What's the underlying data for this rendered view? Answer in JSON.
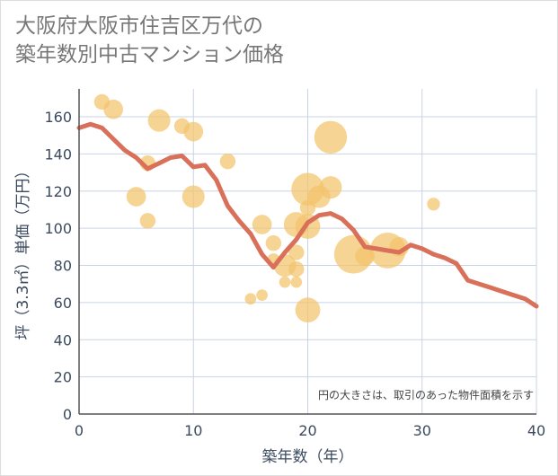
{
  "title_lines": [
    "大阪府大阪市住吉区万代の",
    "築年数別中古マンション価格"
  ],
  "chart_data": {
    "type": "scatter",
    "title": "大阪府大阪市住吉区万代の築年数別中古マンション価格",
    "xlabel": "築年数（年）",
    "ylabel": "坪（3.3㎡）単価（万円）",
    "xlim": [
      0,
      40
    ],
    "ylim": [
      0,
      175
    ],
    "xticks": [
      0,
      10,
      20,
      30,
      40
    ],
    "yticks": [
      0,
      20,
      40,
      60,
      80,
      100,
      120,
      140,
      160
    ],
    "grid": true,
    "annotation": "円の大きさは、取引のあった物件面積を示す",
    "colors": {
      "bubble": "#f3c46b",
      "line": "#d9705a",
      "grid": "#c9d3e6",
      "axis_text": "#3b4a5e"
    },
    "bubbles": [
      {
        "x": 2,
        "y": 168,
        "size": 1
      },
      {
        "x": 3,
        "y": 164,
        "size": 2
      },
      {
        "x": 7,
        "y": 158,
        "size": 3
      },
      {
        "x": 9,
        "y": 155,
        "size": 1
      },
      {
        "x": 10,
        "y": 152,
        "size": 2
      },
      {
        "x": 6,
        "y": 135,
        "size": 1
      },
      {
        "x": 13,
        "y": 136,
        "size": 1
      },
      {
        "x": 5,
        "y": 117,
        "size": 2
      },
      {
        "x": 10,
        "y": 117,
        "size": 3
      },
      {
        "x": 6,
        "y": 104,
        "size": 1
      },
      {
        "x": 16,
        "y": 102,
        "size": 2
      },
      {
        "x": 17,
        "y": 92,
        "size": 1
      },
      {
        "x": 17,
        "y": 83,
        "size": 0.5
      },
      {
        "x": 15,
        "y": 62,
        "size": 0.3
      },
      {
        "x": 16,
        "y": 64,
        "size": 0.3
      },
      {
        "x": 18,
        "y": 71,
        "size": 0.3
      },
      {
        "x": 19,
        "y": 71,
        "size": 0.3
      },
      {
        "x": 18,
        "y": 80,
        "size": 3
      },
      {
        "x": 19,
        "y": 78,
        "size": 1
      },
      {
        "x": 19,
        "y": 87,
        "size": 1
      },
      {
        "x": 19,
        "y": 102,
        "size": 4
      },
      {
        "x": 20,
        "y": 101,
        "size": 4
      },
      {
        "x": 20,
        "y": 111,
        "size": 1
      },
      {
        "x": 21,
        "y": 117,
        "size": 3
      },
      {
        "x": 20,
        "y": 121,
        "size": 8
      },
      {
        "x": 22,
        "y": 122,
        "size": 3
      },
      {
        "x": 22,
        "y": 149,
        "size": 8
      },
      {
        "x": 20,
        "y": 56,
        "size": 4
      },
      {
        "x": 24,
        "y": 86,
        "size": 12
      },
      {
        "x": 25,
        "y": 85,
        "size": 2
      },
      {
        "x": 27,
        "y": 88,
        "size": 10
      },
      {
        "x": 28,
        "y": 90,
        "size": 2
      },
      {
        "x": 31,
        "y": 113,
        "size": 0.5
      }
    ],
    "series": [
      {
        "type": "line",
        "x": [
          0,
          1,
          2,
          3,
          4,
          5,
          6,
          7,
          8,
          9,
          10,
          11,
          12,
          13,
          14,
          15,
          16,
          17,
          18,
          19,
          20,
          21,
          22,
          23,
          24,
          25,
          26,
          27,
          28,
          29,
          30,
          31,
          32,
          33,
          34,
          35,
          36,
          37,
          38,
          39,
          40
        ],
        "values": [
          154,
          156,
          154,
          148,
          142,
          138,
          132,
          135,
          138,
          139,
          133,
          134,
          126,
          112,
          104,
          97,
          86,
          79,
          87,
          94,
          103,
          107,
          108,
          105,
          99,
          90,
          89,
          88,
          87,
          91,
          89,
          86,
          84,
          81,
          72,
          70,
          68,
          66,
          64,
          62,
          58
        ]
      }
    ]
  }
}
